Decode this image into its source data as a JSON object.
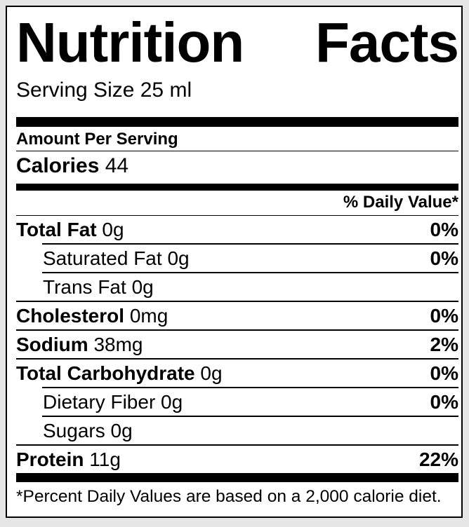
{
  "label": {
    "title": "Nutrition Facts",
    "serving_size": "Serving Size 25 ml",
    "amount_per_serving": "Amount Per Serving",
    "calories": {
      "label": "Calories",
      "value": "44"
    },
    "daily_value_header": "% Daily Value*",
    "rows": [
      {
        "name": "Total Fat",
        "amount": "0g",
        "daily_value": "0%"
      },
      {
        "name": "Saturated Fat",
        "amount": "0g",
        "daily_value": "0%"
      },
      {
        "name": "Trans Fat",
        "amount": "0g",
        "daily_value": ""
      },
      {
        "name": "Cholesterol",
        "amount": "0mg",
        "daily_value": "0%"
      },
      {
        "name": "Sodium",
        "amount": "38mg",
        "daily_value": "2%"
      },
      {
        "name": "Total Carbohydrate",
        "amount": "0g",
        "daily_value": "0%"
      },
      {
        "name": "Dietary Fiber",
        "amount": "0g",
        "daily_value": "0%"
      },
      {
        "name": "Sugars",
        "amount": "0g",
        "daily_value": ""
      },
      {
        "name": "Protein",
        "amount": "11g",
        "daily_value": "22%"
      }
    ],
    "footnote": "*Percent Daily Values are based on a 2,000 calorie diet.",
    "colors": {
      "text": "#000000",
      "label_background": "#ffffff",
      "page_background": "#e6e6e6",
      "divider": "#000000"
    }
  }
}
